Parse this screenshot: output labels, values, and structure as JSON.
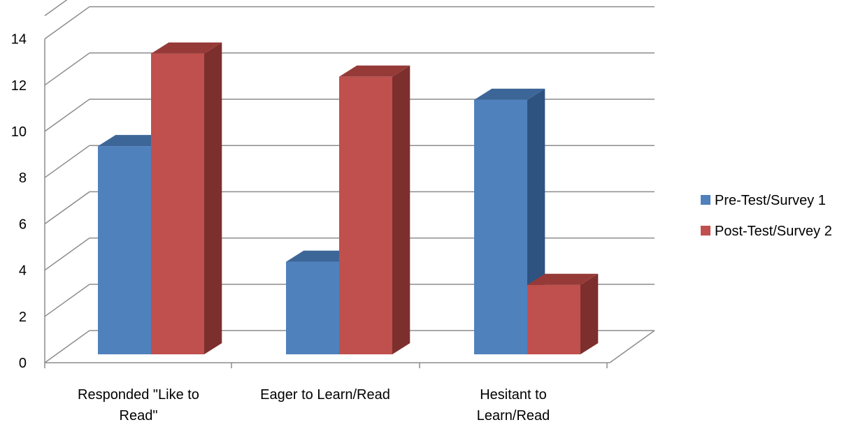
{
  "chart_data": {
    "type": "bar",
    "style": "3d-clustered-column",
    "categories": [
      [
        "Responded  \"Like to",
        "Read\""
      ],
      [
        "Eager to Learn/Read"
      ],
      [
        "Hesitant to",
        "Learn/Read"
      ]
    ],
    "series": [
      {
        "name": "Pre-Test/Survey 1",
        "values": [
          9,
          4,
          11
        ],
        "color": "#4F81BD",
        "side_color": "#2E5380",
        "top_color": "#3D6698"
      },
      {
        "name": "Post-Test/Survey 2",
        "values": [
          13,
          12,
          3
        ],
        "color": "#C0504D",
        "side_color": "#7D2F2D",
        "top_color": "#963A38"
      }
    ],
    "y_ticks": [
      "0",
      "2",
      "4",
      "6",
      "8",
      "10",
      "12",
      "14"
    ],
    "ylim": [
      0,
      14
    ],
    "grid": true,
    "legend_position": "right"
  }
}
